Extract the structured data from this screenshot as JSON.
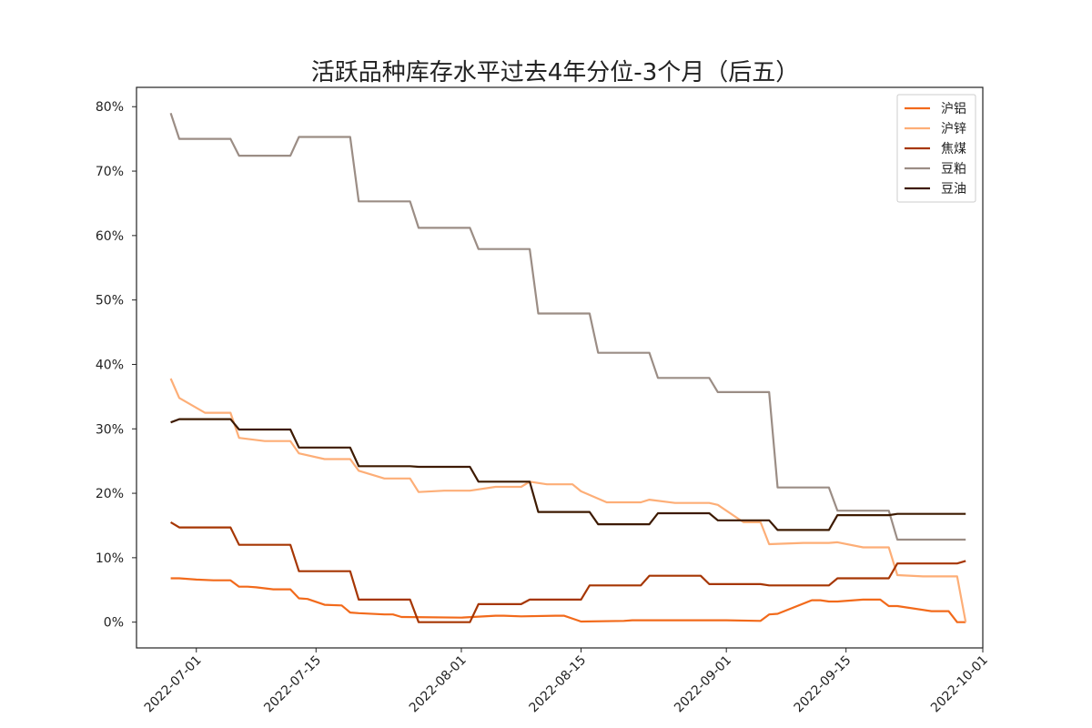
{
  "chart_data": {
    "type": "line",
    "title": "活跃品种库存水平过去4年分位-3个月（后五）",
    "xlabel": "",
    "ylabel": "",
    "x_ticks": [
      "2022-07-01",
      "2022-07-15",
      "2022-08-01",
      "2022-08-15",
      "2022-09-01",
      "2022-09-15",
      "2022-10-01"
    ],
    "y_ticks": [
      "0%",
      "10%",
      "20%",
      "30%",
      "40%",
      "50%",
      "60%",
      "70%",
      "80%"
    ],
    "xlim": [
      "2022-06-24",
      "2022-10-01"
    ],
    "ylim": [
      -4,
      83
    ],
    "grid": false,
    "legend_position": "top-right",
    "series": [
      {
        "name": "沪铝",
        "color": "#f26a1b",
        "points": [
          [
            "2022-06-28",
            6.8
          ],
          [
            "2022-06-29",
            6.8
          ],
          [
            "2022-07-01",
            6.6
          ],
          [
            "2022-07-03",
            6.5
          ],
          [
            "2022-07-05",
            6.5
          ],
          [
            "2022-07-06",
            5.5
          ],
          [
            "2022-07-07",
            5.5
          ],
          [
            "2022-07-08",
            5.4
          ],
          [
            "2022-07-10",
            5.1
          ],
          [
            "2022-07-12",
            5.1
          ],
          [
            "2022-07-13",
            3.7
          ],
          [
            "2022-07-14",
            3.6
          ],
          [
            "2022-07-16",
            2.7
          ],
          [
            "2022-07-18",
            2.6
          ],
          [
            "2022-07-19",
            1.5
          ],
          [
            "2022-07-20",
            1.4
          ],
          [
            "2022-07-23",
            1.2
          ],
          [
            "2022-07-24",
            1.2
          ],
          [
            "2022-07-25",
            0.8
          ],
          [
            "2022-08-01",
            0.7
          ],
          [
            "2022-08-05",
            1.0
          ],
          [
            "2022-08-06",
            1.0
          ],
          [
            "2022-08-08",
            0.9
          ],
          [
            "2022-08-12",
            1.0
          ],
          [
            "2022-08-13",
            1.0
          ],
          [
            "2022-08-15",
            0.1
          ],
          [
            "2022-08-20",
            0.2
          ],
          [
            "2022-08-21",
            0.3
          ],
          [
            "2022-09-01",
            0.3
          ],
          [
            "2022-09-05",
            0.2
          ],
          [
            "2022-09-06",
            1.2
          ],
          [
            "2022-09-07",
            1.3
          ],
          [
            "2022-09-11",
            3.4
          ],
          [
            "2022-09-12",
            3.4
          ],
          [
            "2022-09-13",
            3.2
          ],
          [
            "2022-09-14",
            3.2
          ],
          [
            "2022-09-17",
            3.5
          ],
          [
            "2022-09-19",
            3.5
          ],
          [
            "2022-09-20",
            2.5
          ],
          [
            "2022-09-21",
            2.5
          ],
          [
            "2022-09-25",
            1.7
          ],
          [
            "2022-09-27",
            1.7
          ],
          [
            "2022-09-28",
            0.0
          ],
          [
            "2022-09-29",
            0.0
          ]
        ]
      },
      {
        "name": "沪锌",
        "color": "#fdae77",
        "points": [
          [
            "2022-06-28",
            37.8
          ],
          [
            "2022-06-29",
            34.8
          ],
          [
            "2022-07-02",
            32.5
          ],
          [
            "2022-07-05",
            32.5
          ],
          [
            "2022-07-06",
            28.6
          ],
          [
            "2022-07-09",
            28.1
          ],
          [
            "2022-07-12",
            28.1
          ],
          [
            "2022-07-13",
            26.2
          ],
          [
            "2022-07-16",
            25.3
          ],
          [
            "2022-07-19",
            25.3
          ],
          [
            "2022-07-20",
            23.5
          ],
          [
            "2022-07-23",
            22.3
          ],
          [
            "2022-07-26",
            22.3
          ],
          [
            "2022-07-27",
            20.2
          ],
          [
            "2022-07-30",
            20.4
          ],
          [
            "2022-08-02",
            20.4
          ],
          [
            "2022-08-05",
            21.0
          ],
          [
            "2022-08-08",
            21.0
          ],
          [
            "2022-08-09",
            21.8
          ],
          [
            "2022-08-11",
            21.4
          ],
          [
            "2022-08-14",
            21.4
          ],
          [
            "2022-08-15",
            20.3
          ],
          [
            "2022-08-18",
            18.6
          ],
          [
            "2022-08-22",
            18.6
          ],
          [
            "2022-08-23",
            19.0
          ],
          [
            "2022-08-26",
            18.5
          ],
          [
            "2022-08-30",
            18.5
          ],
          [
            "2022-08-31",
            18.2
          ],
          [
            "2022-09-03",
            15.5
          ],
          [
            "2022-09-05",
            15.5
          ],
          [
            "2022-09-06",
            12.1
          ],
          [
            "2022-09-10",
            12.3
          ],
          [
            "2022-09-13",
            12.3
          ],
          [
            "2022-09-14",
            12.4
          ],
          [
            "2022-09-17",
            11.6
          ],
          [
            "2022-09-20",
            11.6
          ],
          [
            "2022-09-21",
            7.3
          ],
          [
            "2022-09-24",
            7.1
          ],
          [
            "2022-09-28",
            7.1
          ],
          [
            "2022-09-29",
            0.0
          ]
        ]
      },
      {
        "name": "焦煤",
        "color": "#a63603",
        "points": [
          [
            "2022-06-28",
            15.5
          ],
          [
            "2022-06-29",
            14.7
          ],
          [
            "2022-07-05",
            14.7
          ],
          [
            "2022-07-06",
            12.0
          ],
          [
            "2022-07-12",
            12.0
          ],
          [
            "2022-07-13",
            7.9
          ],
          [
            "2022-07-19",
            7.9
          ],
          [
            "2022-07-20",
            3.5
          ],
          [
            "2022-07-26",
            3.5
          ],
          [
            "2022-07-27",
            0.0
          ],
          [
            "2022-08-02",
            0.0
          ],
          [
            "2022-08-03",
            2.8
          ],
          [
            "2022-08-08",
            2.8
          ],
          [
            "2022-08-09",
            3.5
          ],
          [
            "2022-08-15",
            3.5
          ],
          [
            "2022-08-16",
            5.7
          ],
          [
            "2022-08-22",
            5.7
          ],
          [
            "2022-08-23",
            7.2
          ],
          [
            "2022-08-29",
            7.2
          ],
          [
            "2022-08-30",
            5.9
          ],
          [
            "2022-09-05",
            5.9
          ],
          [
            "2022-09-06",
            5.7
          ],
          [
            "2022-09-13",
            5.7
          ],
          [
            "2022-09-14",
            6.8
          ],
          [
            "2022-09-20",
            6.8
          ],
          [
            "2022-09-21",
            9.1
          ],
          [
            "2022-09-28",
            9.1
          ],
          [
            "2022-09-29",
            9.5
          ]
        ]
      },
      {
        "name": "豆粕",
        "color": "#9b8d85",
        "points": [
          [
            "2022-06-28",
            79.0
          ],
          [
            "2022-06-29",
            75.0
          ],
          [
            "2022-07-05",
            75.0
          ],
          [
            "2022-07-06",
            72.4
          ],
          [
            "2022-07-12",
            72.4
          ],
          [
            "2022-07-13",
            75.3
          ],
          [
            "2022-07-19",
            75.3
          ],
          [
            "2022-07-20",
            65.3
          ],
          [
            "2022-07-26",
            65.3
          ],
          [
            "2022-07-27",
            61.2
          ],
          [
            "2022-08-02",
            61.2
          ],
          [
            "2022-08-03",
            57.9
          ],
          [
            "2022-08-09",
            57.9
          ],
          [
            "2022-08-10",
            47.9
          ],
          [
            "2022-08-16",
            47.9
          ],
          [
            "2022-08-17",
            41.8
          ],
          [
            "2022-08-23",
            41.8
          ],
          [
            "2022-08-24",
            37.9
          ],
          [
            "2022-08-30",
            37.9
          ],
          [
            "2022-08-31",
            35.7
          ],
          [
            "2022-09-06",
            35.7
          ],
          [
            "2022-09-07",
            20.9
          ],
          [
            "2022-09-13",
            20.9
          ],
          [
            "2022-09-14",
            17.3
          ],
          [
            "2022-09-20",
            17.3
          ],
          [
            "2022-09-21",
            12.8
          ],
          [
            "2022-09-29",
            12.8
          ]
        ]
      },
      {
        "name": "豆油",
        "color": "#3d1a00",
        "points": [
          [
            "2022-06-28",
            31.0
          ],
          [
            "2022-06-29",
            31.5
          ],
          [
            "2022-07-05",
            31.5
          ],
          [
            "2022-07-06",
            29.9
          ],
          [
            "2022-07-12",
            29.9
          ],
          [
            "2022-07-13",
            27.1
          ],
          [
            "2022-07-19",
            27.1
          ],
          [
            "2022-07-20",
            24.2
          ],
          [
            "2022-07-26",
            24.2
          ],
          [
            "2022-07-27",
            24.1
          ],
          [
            "2022-08-02",
            24.1
          ],
          [
            "2022-08-03",
            21.8
          ],
          [
            "2022-08-09",
            21.8
          ],
          [
            "2022-08-10",
            17.1
          ],
          [
            "2022-08-16",
            17.1
          ],
          [
            "2022-08-17",
            15.2
          ],
          [
            "2022-08-23",
            15.2
          ],
          [
            "2022-08-24",
            16.9
          ],
          [
            "2022-08-30",
            16.9
          ],
          [
            "2022-08-31",
            15.8
          ],
          [
            "2022-09-06",
            15.8
          ],
          [
            "2022-09-07",
            14.3
          ],
          [
            "2022-09-13",
            14.3
          ],
          [
            "2022-09-14",
            16.6
          ],
          [
            "2022-09-20",
            16.6
          ],
          [
            "2022-09-21",
            16.8
          ],
          [
            "2022-09-29",
            16.8
          ]
        ]
      }
    ]
  }
}
